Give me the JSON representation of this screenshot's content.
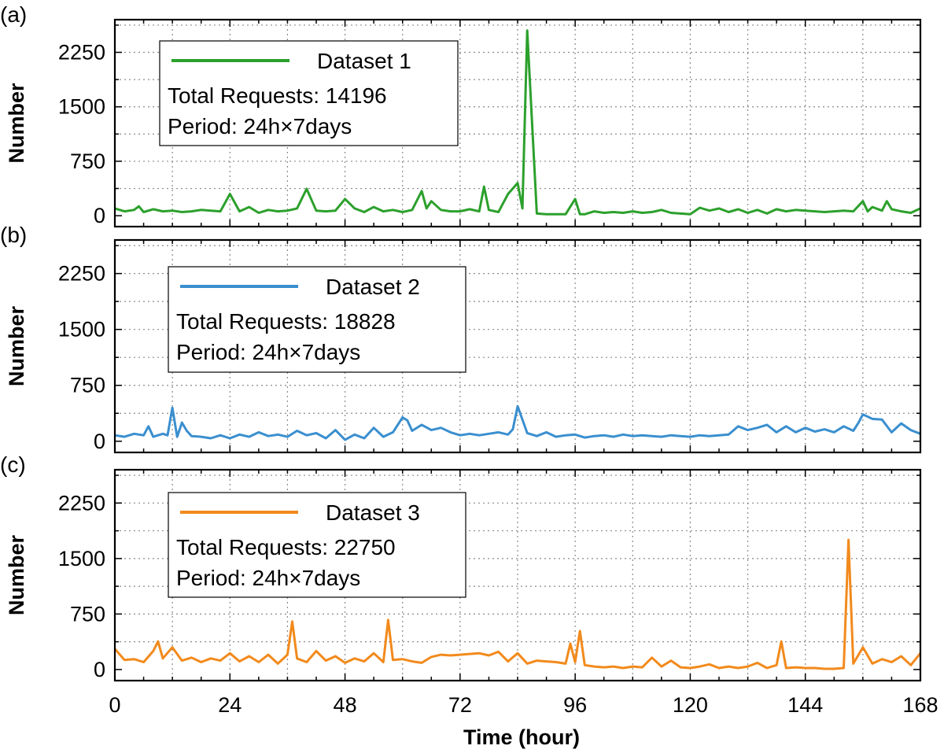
{
  "chart_data": {
    "type": "line",
    "xlabel": "Time (hour)",
    "ylabel": "Number",
    "xlim": [
      0,
      168
    ],
    "ylim": [
      -150,
      2700
    ],
    "x_ticks": [
      "0",
      "24",
      "48",
      "72",
      "96",
      "120",
      "144",
      "168"
    ],
    "y_ticks": [
      "0",
      "750",
      "1500",
      "2250"
    ],
    "grid": true,
    "grid_style": "dotted",
    "legend_position": "upper-left",
    "panels": [
      {
        "label": "(a)",
        "legend": {
          "series_name": "Dataset 1",
          "total_text": "Total Requests: 14196",
          "period_text": "Period: 24h×7days"
        },
        "color": "#2ca02c",
        "series": [
          {
            "name": "Dataset 1",
            "x": [
              0,
              2,
              4,
              5,
              6,
              8,
              10,
              12,
              14,
              16,
              18,
              20,
              22,
              24,
              26,
              28,
              30,
              32,
              34,
              36,
              38,
              40,
              42,
              44,
              46,
              48,
              50,
              52,
              54,
              56,
              58,
              60,
              62,
              64,
              65,
              66,
              68,
              70,
              72,
              74,
              76,
              77,
              78,
              80,
              82,
              84,
              85,
              86,
              88,
              90,
              92,
              94,
              96,
              97,
              98,
              100,
              102,
              104,
              106,
              108,
              110,
              112,
              114,
              116,
              118,
              120,
              122,
              124,
              126,
              128,
              130,
              132,
              134,
              136,
              138,
              140,
              142,
              144,
              146,
              148,
              150,
              152,
              154,
              156,
              157,
              158,
              160,
              161,
              162,
              164,
              166,
              168
            ],
            "y": [
              100,
              60,
              80,
              130,
              50,
              90,
              60,
              70,
              50,
              60,
              80,
              70,
              60,
              300,
              60,
              120,
              40,
              80,
              60,
              70,
              100,
              370,
              70,
              60,
              70,
              230,
              100,
              50,
              120,
              60,
              80,
              50,
              80,
              340,
              100,
              200,
              80,
              60,
              60,
              90,
              60,
              400,
              80,
              50,
              300,
              450,
              100,
              2550,
              30,
              20,
              20,
              20,
              230,
              20,
              20,
              60,
              40,
              50,
              40,
              60,
              40,
              50,
              80,
              40,
              30,
              20,
              110,
              70,
              100,
              50,
              90,
              40,
              80,
              30,
              90,
              60,
              80,
              70,
              60,
              50,
              60,
              70,
              60,
              200,
              60,
              120,
              70,
              200,
              90,
              60,
              40,
              100
            ]
          }
        ]
      },
      {
        "label": "(b)",
        "legend": {
          "series_name": "Dataset 2",
          "total_text": "Total Requests: 18828",
          "period_text": "Period: 24h×7days"
        },
        "color": "#3a8fcf",
        "series": [
          {
            "name": "Dataset 2",
            "x": [
              0,
              2,
              4,
              6,
              7,
              8,
              10,
              11,
              12,
              13,
              14,
              15,
              16,
              18,
              20,
              22,
              24,
              26,
              28,
              30,
              32,
              34,
              36,
              38,
              40,
              42,
              44,
              46,
              48,
              50,
              52,
              54,
              56,
              58,
              60,
              61,
              62,
              64,
              66,
              68,
              70,
              72,
              74,
              76,
              78,
              80,
              82,
              83,
              84,
              86,
              88,
              90,
              92,
              94,
              96,
              98,
              100,
              102,
              104,
              106,
              108,
              110,
              112,
              114,
              116,
              118,
              120,
              122,
              124,
              126,
              128,
              130,
              132,
              134,
              136,
              138,
              140,
              142,
              144,
              146,
              148,
              150,
              152,
              154,
              155,
              156,
              158,
              160,
              162,
              164,
              166,
              168
            ],
            "y": [
              80,
              60,
              100,
              80,
              200,
              60,
              100,
              80,
              450,
              60,
              250,
              140,
              70,
              60,
              40,
              80,
              40,
              90,
              60,
              120,
              70,
              90,
              60,
              140,
              80,
              110,
              40,
              150,
              20,
              90,
              40,
              180,
              60,
              120,
              320,
              280,
              140,
              220,
              150,
              180,
              120,
              80,
              100,
              80,
              100,
              120,
              90,
              160,
              470,
              110,
              70,
              120,
              60,
              80,
              90,
              50,
              70,
              80,
              60,
              90,
              70,
              80,
              70,
              60,
              80,
              70,
              60,
              80,
              70,
              80,
              90,
              200,
              150,
              180,
              220,
              120,
              200,
              120,
              180,
              130,
              160,
              120,
              200,
              140,
              240,
              360,
              300,
              290,
              120,
              240,
              150,
              100
            ]
          }
        ]
      },
      {
        "label": "(c)",
        "legend": {
          "series_name": "Dataset 3",
          "total_text": "Total Requests: 22750",
          "period_text": "Period: 24h×7days"
        },
        "color": "#f28a1c",
        "series": [
          {
            "name": "Dataset 3",
            "x": [
              0,
              2,
              4,
              6,
              8,
              9,
              10,
              12,
              14,
              16,
              18,
              20,
              22,
              24,
              26,
              28,
              30,
              32,
              34,
              36,
              37,
              38,
              40,
              42,
              44,
              46,
              48,
              50,
              52,
              54,
              56,
              57,
              58,
              60,
              62,
              64,
              66,
              68,
              70,
              72,
              74,
              76,
              78,
              80,
              82,
              84,
              86,
              88,
              90,
              92,
              94,
              95,
              96,
              97,
              98,
              100,
              102,
              104,
              106,
              108,
              110,
              112,
              114,
              116,
              118,
              120,
              122,
              124,
              126,
              128,
              130,
              132,
              134,
              136,
              138,
              139,
              140,
              142,
              144,
              146,
              148,
              150,
              152,
              153,
              154,
              156,
              158,
              160,
              162,
              164,
              166,
              168
            ],
            "y": [
              280,
              130,
              140,
              100,
              250,
              380,
              150,
              300,
              120,
              160,
              100,
              150,
              120,
              220,
              110,
              180,
              100,
              200,
              80,
              200,
              650,
              150,
              100,
              250,
              120,
              180,
              90,
              150,
              110,
              220,
              100,
              670,
              130,
              140,
              110,
              90,
              170,
              200,
              190,
              200,
              210,
              220,
              190,
              240,
              110,
              220,
              80,
              120,
              110,
              100,
              80,
              350,
              100,
              520,
              60,
              40,
              30,
              40,
              20,
              40,
              30,
              160,
              40,
              120,
              30,
              20,
              40,
              70,
              20,
              40,
              20,
              40,
              90,
              20,
              60,
              380,
              20,
              30,
              20,
              20,
              10,
              10,
              20,
              1750,
              80,
              300,
              80,
              140,
              100,
              180,
              60,
              220
            ]
          }
        ]
      }
    ]
  }
}
